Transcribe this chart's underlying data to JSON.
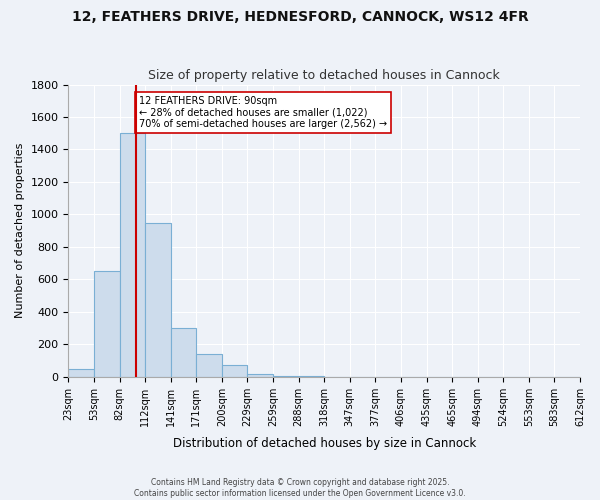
{
  "title": "12, FEATHERS DRIVE, HEDNESFORD, CANNOCK, WS12 4FR",
  "subtitle": "Size of property relative to detached houses in Cannock",
  "xlabel": "Distribution of detached houses by size in Cannock",
  "ylabel": "Number of detached properties",
  "bar_values": [
    50,
    650,
    1500,
    950,
    300,
    140,
    70,
    20,
    5,
    2,
    1,
    1,
    1,
    1,
    1,
    1,
    1,
    1,
    0,
    0
  ],
  "bin_labels": [
    "23sqm",
    "53sqm",
    "82sqm",
    "112sqm",
    "141sqm",
    "171sqm",
    "200sqm",
    "229sqm",
    "259sqm",
    "288sqm",
    "318sqm",
    "347sqm",
    "377sqm",
    "406sqm",
    "435sqm",
    "465sqm",
    "494sqm",
    "524sqm",
    "553sqm",
    "583sqm",
    "612sqm"
  ],
  "bar_color": "#cddcec",
  "bar_edge_color": "#7aafd4",
  "vline_bin_index": 2.65,
  "vline_color": "#cc0000",
  "annotation_text": "12 FEATHERS DRIVE: 90sqm\n← 28% of detached houses are smaller (1,022)\n70% of semi-detached houses are larger (2,562) →",
  "annotation_box_color": "#ffffff",
  "annotation_box_edge": "#cc0000",
  "ylim": [
    0,
    1800
  ],
  "background_color": "#eef2f8",
  "grid_color": "#ffffff",
  "footer_line1": "Contains HM Land Registry data © Crown copyright and database right 2025.",
  "footer_line2": "Contains public sector information licensed under the Open Government Licence v3.0."
}
